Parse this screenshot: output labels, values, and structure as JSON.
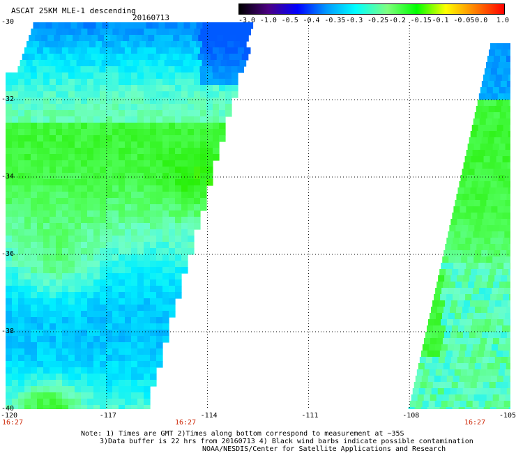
{
  "header": {
    "product": "ASCAT 25KM MLE-1 descending",
    "date": "20160713"
  },
  "colorbar": {
    "labels": [
      "-3.0",
      "-1.0",
      "-0.5",
      "-0.4",
      "-0.35",
      "-0.3",
      "-0.25",
      "-0.2",
      "-0.15",
      "-0.1",
      "-0.05",
      "0.0",
      "1.0"
    ],
    "colors": [
      "#000000",
      "#4b0082",
      "#0000ff",
      "#0099ff",
      "#00ffff",
      "#7fff7f",
      "#00ff00",
      "#ffff00",
      "#ff8000",
      "#ff0000"
    ]
  },
  "map": {
    "lat_labels": [
      "-30",
      "-32",
      "-34",
      "-36",
      "-38",
      "-40"
    ],
    "lon_labels": [
      "-120",
      "-117",
      "-114",
      "-111",
      "-108",
      "-105"
    ],
    "lat_range": [
      -40,
      -30
    ],
    "lon_range": [
      -120,
      -105
    ],
    "grid": true,
    "grid_lat": [
      -32,
      -34,
      -36,
      -38
    ],
    "grid_lon": [
      -117,
      -114,
      -111,
      -108
    ],
    "swath_times": [
      "16:27",
      "16:27",
      "16:27"
    ]
  },
  "notes": {
    "line1": "Note: 1) Times are GMT 2)Times along bottom correspond to measurement at ~35S",
    "line2": "3)Data buffer is 22 hrs from 20160713 4) Black wind barbs indicate possible contamination",
    "line3": "NOAA/NESDIS/Center for Satellite Applications and Research"
  }
}
